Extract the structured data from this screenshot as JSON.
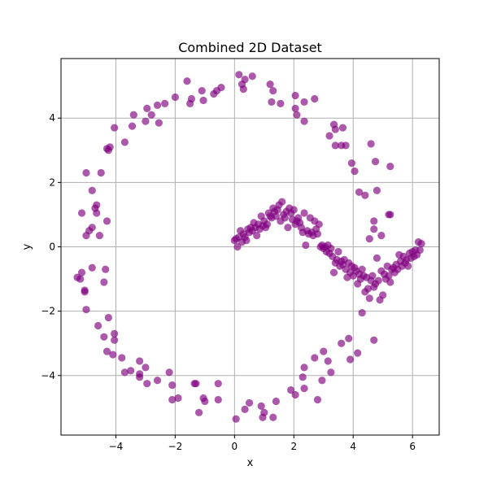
{
  "chart_data": {
    "type": "scatter",
    "title": "Combined 2D Dataset",
    "xlabel": "x",
    "ylabel": "y",
    "xlim": [
      -5.85,
      6.9
    ],
    "ylim": [
      -5.85,
      5.85
    ],
    "xticks": [
      -4,
      -2,
      0,
      2,
      4,
      6
    ],
    "yticks": [
      -4,
      -2,
      0,
      2,
      4
    ],
    "xtick_labels": [
      "−4",
      "−2",
      "0",
      "2",
      "4",
      "6"
    ],
    "ytick_labels": [
      "−4",
      "−2",
      "0",
      "2",
      "4"
    ],
    "grid": true,
    "marker_color": "#800080",
    "marker_alpha": 0.65,
    "series": [
      {
        "points": [
          [
            0.15,
            5.35
          ],
          [
            0.35,
            5.2
          ],
          [
            0.25,
            5.05
          ],
          [
            0.6,
            5.3
          ],
          [
            0.3,
            4.9
          ],
          [
            -0.45,
            4.95
          ],
          [
            -0.6,
            4.85
          ],
          [
            -0.7,
            4.75
          ],
          [
            -1.1,
            4.85
          ],
          [
            -1.45,
            4.6
          ],
          [
            -1.05,
            4.55
          ],
          [
            -1.5,
            4.45
          ],
          [
            -1.6,
            5.15
          ],
          [
            -2.0,
            4.65
          ],
          [
            -2.35,
            4.45
          ],
          [
            -2.6,
            4.4
          ],
          [
            -2.8,
            4.1
          ],
          [
            -2.95,
            4.3
          ],
          [
            -3.0,
            3.9
          ],
          [
            -3.4,
            4.1
          ],
          [
            -3.45,
            3.75
          ],
          [
            -2.55,
            3.85
          ],
          [
            -3.7,
            3.25
          ],
          [
            -4.05,
            3.7
          ],
          [
            -4.25,
            3.0
          ],
          [
            -4.2,
            3.1
          ],
          [
            -4.3,
            3.05
          ],
          [
            -4.5,
            2.3
          ],
          [
            -5.0,
            2.3
          ],
          [
            -4.8,
            1.75
          ],
          [
            -4.65,
            1.3
          ],
          [
            -4.7,
            1.2
          ],
          [
            -5.15,
            1.05
          ],
          [
            -4.65,
            1.05
          ],
          [
            -4.3,
            0.8
          ],
          [
            -4.8,
            0.6
          ],
          [
            -4.9,
            0.5
          ],
          [
            -5.0,
            0.35
          ],
          [
            -4.55,
            0.35
          ],
          [
            -5.15,
            -0.8
          ],
          [
            -5.2,
            -1.0
          ],
          [
            -5.3,
            -0.95
          ],
          [
            -4.8,
            -0.65
          ],
          [
            -4.35,
            -0.7
          ],
          [
            -4.4,
            -1.1
          ],
          [
            -5.05,
            -1.35
          ],
          [
            -5.05,
            -1.4
          ],
          [
            -5.0,
            -1.95
          ],
          [
            -4.6,
            -2.45
          ],
          [
            -4.25,
            -2.2
          ],
          [
            -4.4,
            -2.8
          ],
          [
            -4.05,
            -2.7
          ],
          [
            -4.05,
            -2.9
          ],
          [
            -4.3,
            -3.25
          ],
          [
            -4.1,
            -3.35
          ],
          [
            -3.8,
            -3.45
          ],
          [
            -3.7,
            -3.9
          ],
          [
            -3.5,
            -3.85
          ],
          [
            -3.2,
            -3.95
          ],
          [
            -3.2,
            -4.05
          ],
          [
            -3.2,
            -3.55
          ],
          [
            -3.0,
            -3.75
          ],
          [
            -2.95,
            -4.25
          ],
          [
            -2.6,
            -4.15
          ],
          [
            -2.2,
            -3.9
          ],
          [
            -2.1,
            -4.3
          ],
          [
            -2.1,
            -4.75
          ],
          [
            -1.9,
            -4.7
          ],
          [
            -1.35,
            -4.25
          ],
          [
            -1.3,
            -4.25
          ],
          [
            -1.05,
            -4.7
          ],
          [
            -1.0,
            -4.8
          ],
          [
            -1.2,
            -5.15
          ],
          [
            -0.55,
            -4.25
          ],
          [
            -0.55,
            -4.75
          ],
          [
            0.05,
            -5.35
          ],
          [
            0.35,
            -5.05
          ],
          [
            0.5,
            -4.85
          ],
          [
            0.9,
            -4.95
          ],
          [
            0.95,
            -5.3
          ],
          [
            1.0,
            -5.15
          ],
          [
            1.3,
            -5.3
          ],
          [
            1.4,
            -4.8
          ],
          [
            1.9,
            -4.45
          ],
          [
            2.05,
            -4.6
          ],
          [
            2.3,
            -4.05
          ],
          [
            2.35,
            -4.4
          ],
          [
            2.35,
            -3.75
          ],
          [
            2.7,
            -3.45
          ],
          [
            2.8,
            -4.75
          ],
          [
            2.95,
            -4.15
          ],
          [
            3.0,
            -3.25
          ],
          [
            3.15,
            -3.55
          ],
          [
            3.25,
            -3.9
          ],
          [
            3.6,
            -3.0
          ],
          [
            3.85,
            -2.85
          ],
          [
            3.9,
            -3.5
          ],
          [
            4.15,
            -3.3
          ],
          [
            4.3,
            -2.05
          ],
          [
            4.7,
            -2.9
          ],
          [
            1.2,
            5.05
          ],
          [
            1.25,
            4.5
          ],
          [
            1.3,
            4.85
          ],
          [
            1.55,
            4.45
          ],
          [
            2.05,
            4.3
          ],
          [
            2.05,
            4.7
          ],
          [
            2.1,
            4.1
          ],
          [
            2.35,
            4.5
          ],
          [
            2.35,
            3.9
          ],
          [
            2.7,
            4.6
          ],
          [
            3.2,
            3.45
          ],
          [
            3.35,
            3.8
          ],
          [
            3.4,
            3.65
          ],
          [
            3.4,
            3.15
          ],
          [
            3.65,
            3.7
          ],
          [
            3.6,
            3.15
          ],
          [
            3.75,
            3.15
          ],
          [
            3.95,
            2.6
          ],
          [
            4.05,
            2.35
          ],
          [
            4.2,
            1.7
          ],
          [
            4.4,
            1.6
          ],
          [
            4.6,
            3.2
          ],
          [
            4.75,
            2.65
          ],
          [
            4.8,
            1.75
          ],
          [
            5.25,
            2.5
          ],
          [
            5.2,
            1.0
          ],
          [
            5.25,
            1.0
          ],
          [
            4.7,
            0.8
          ],
          [
            4.7,
            0.55
          ],
          [
            4.55,
            0.25
          ],
          [
            4.95,
            0.35
          ]
        ]
      },
      {
        "points": [
          [
            0.0,
            0.2
          ],
          [
            0.05,
            0.25
          ],
          [
            0.1,
            0.0
          ],
          [
            0.15,
            0.3
          ],
          [
            0.2,
            0.5
          ],
          [
            0.25,
            0.15
          ],
          [
            0.3,
            0.4
          ],
          [
            0.35,
            0.3
          ],
          [
            0.4,
            0.2
          ],
          [
            0.45,
            0.55
          ],
          [
            0.5,
            0.45
          ],
          [
            0.55,
            0.6
          ],
          [
            0.6,
            0.5
          ],
          [
            0.65,
            0.75
          ],
          [
            0.7,
            0.6
          ],
          [
            0.75,
            0.35
          ],
          [
            0.8,
            0.7
          ],
          [
            0.85,
            0.55
          ],
          [
            0.9,
            0.95
          ],
          [
            0.95,
            0.65
          ],
          [
            1.0,
            0.8
          ],
          [
            1.05,
            0.6
          ],
          [
            1.1,
            0.7
          ],
          [
            1.15,
            1.05
          ],
          [
            1.2,
            0.95
          ],
          [
            1.25,
            0.9
          ],
          [
            1.3,
            1.2
          ],
          [
            1.35,
            1.1
          ],
          [
            1.4,
            0.95
          ],
          [
            1.45,
            1.15
          ],
          [
            1.5,
            1.3
          ],
          [
            1.55,
            0.8
          ],
          [
            1.6,
            1.4
          ],
          [
            1.65,
            1.0
          ],
          [
            1.7,
            0.9
          ],
          [
            1.75,
            1.1
          ],
          [
            1.8,
            0.6
          ],
          [
            1.85,
            1.2
          ],
          [
            1.9,
            1.05
          ],
          [
            1.95,
            0.85
          ],
          [
            2.0,
            1.15
          ],
          [
            2.05,
            0.7
          ],
          [
            2.1,
            0.8
          ],
          [
            2.15,
            0.9
          ],
          [
            2.2,
            0.75
          ],
          [
            2.25,
            0.6
          ],
          [
            2.3,
            0.45
          ],
          [
            2.35,
            1.05
          ],
          [
            2.4,
            0.05
          ],
          [
            2.45,
            0.5
          ],
          [
            2.5,
            0.4
          ],
          [
            2.55,
            0.9
          ],
          [
            2.6,
            0.45
          ],
          [
            2.65,
            0.35
          ],
          [
            2.7,
            0.8
          ],
          [
            2.75,
            0.55
          ],
          [
            2.8,
            0.4
          ],
          [
            2.85,
            0.7
          ],
          [
            2.9,
            0.0
          ],
          [
            2.95,
            0.05
          ],
          [
            3.0,
            -0.05
          ],
          [
            3.05,
            0.0
          ],
          [
            3.1,
            -0.15
          ],
          [
            3.15,
            0.05
          ],
          [
            3.2,
            -0.2
          ],
          [
            3.25,
            -0.05
          ],
          [
            3.3,
            -0.3
          ],
          [
            3.35,
            -0.8
          ],
          [
            3.4,
            -0.5
          ],
          [
            3.45,
            -0.4
          ],
          [
            3.5,
            -0.15
          ],
          [
            3.55,
            -0.6
          ],
          [
            3.6,
            -0.45
          ],
          [
            3.65,
            -0.55
          ],
          [
            3.7,
            -0.4
          ],
          [
            3.75,
            -0.7
          ],
          [
            3.8,
            -0.95
          ],
          [
            3.85,
            -0.5
          ],
          [
            3.9,
            -0.8
          ],
          [
            3.95,
            -0.6
          ],
          [
            4.0,
            -0.9
          ],
          [
            4.05,
            -0.65
          ],
          [
            4.1,
            -0.75
          ],
          [
            4.15,
            -1.15
          ],
          [
            4.2,
            -0.85
          ],
          [
            4.25,
            -1.0
          ],
          [
            4.3,
            -0.7
          ],
          [
            4.35,
            -0.9
          ],
          [
            4.4,
            -1.4
          ],
          [
            4.45,
            -0.95
          ],
          [
            4.5,
            -1.3
          ],
          [
            4.55,
            -1.6
          ],
          [
            4.6,
            -1.05
          ],
          [
            4.65,
            -0.9
          ],
          [
            4.7,
            -1.25
          ],
          [
            4.75,
            -1.15
          ],
          [
            4.8,
            -0.35
          ],
          [
            4.85,
            -1.05
          ],
          [
            4.9,
            -1.65
          ],
          [
            4.95,
            -0.75
          ],
          [
            5.0,
            -1.5
          ],
          [
            5.05,
            -0.85
          ],
          [
            5.1,
            -1.0
          ],
          [
            5.15,
            -0.6
          ],
          [
            5.2,
            -0.9
          ],
          [
            5.25,
            -1.1
          ],
          [
            5.3,
            -0.7
          ],
          [
            5.35,
            -0.65
          ],
          [
            5.4,
            -0.8
          ],
          [
            5.45,
            -0.55
          ],
          [
            5.5,
            -0.7
          ],
          [
            5.55,
            -0.25
          ],
          [
            5.6,
            -0.45
          ],
          [
            5.65,
            -0.6
          ],
          [
            5.7,
            -0.3
          ],
          [
            5.75,
            -0.5
          ],
          [
            5.8,
            -0.4
          ],
          [
            5.85,
            -0.6
          ],
          [
            5.9,
            -0.2
          ],
          [
            5.95,
            -0.35
          ],
          [
            6.0,
            -0.15
          ],
          [
            6.05,
            -0.3
          ],
          [
            6.1,
            -0.1
          ],
          [
            6.15,
            -0.25
          ],
          [
            6.2,
            0.15
          ],
          [
            6.25,
            -0.1
          ],
          [
            6.3,
            0.1
          ]
        ]
      }
    ]
  }
}
